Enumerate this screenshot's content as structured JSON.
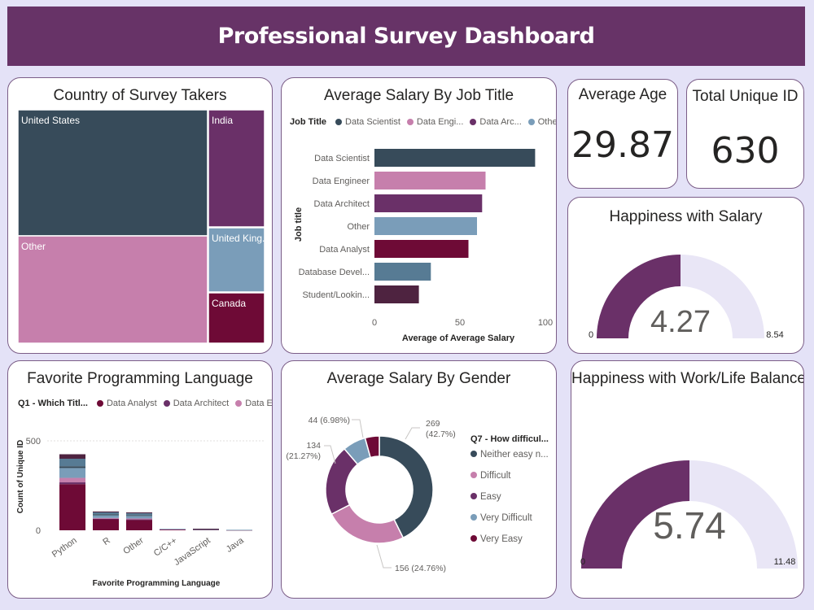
{
  "header": {
    "title": "Professional Survey Dashboard"
  },
  "cards": {
    "country": {
      "title": "Country of Survey Takers"
    },
    "salary_job": {
      "title": "Average Salary By Job Title"
    },
    "avg_age": {
      "title": "Average Age",
      "value": "29.87"
    },
    "total_id": {
      "title": "Total Unique ID",
      "value": "630"
    },
    "happy_salary": {
      "title": "Happiness with Salary",
      "value": "4.27",
      "min": "0",
      "max": "8.54",
      "fraction": 0.5
    },
    "prog_lang": {
      "title": "Favorite Programming Language"
    },
    "salary_gender": {
      "title": "Average Salary By Gender"
    },
    "happy_wlb": {
      "title": "Happiness with Work/Life Balance",
      "value": "5.74",
      "min": "0",
      "max": "11.48",
      "fraction": 0.5
    }
  },
  "colors": {
    "header": "#673367",
    "slate": "#374b5a",
    "pink": "#c67fac",
    "purple": "#6a3068",
    "steel": "#7a9db9",
    "maroon": "#6e0a36",
    "steel2": "#577b94",
    "plum": "#4e2340",
    "gauge_track": "#e9e6f6"
  },
  "chart_data": [
    {
      "id": "country",
      "type": "treemap",
      "title": "Country of Survey Takers",
      "items": [
        {
          "name": "United States",
          "color": "#374b5a"
        },
        {
          "name": "Other",
          "color": "#c67fac"
        },
        {
          "name": "India",
          "color": "#6a3068"
        },
        {
          "name": "United King...",
          "color": "#7a9db9"
        },
        {
          "name": "Canada",
          "color": "#6e0a36"
        }
      ]
    },
    {
      "id": "salary_job",
      "type": "bar",
      "orientation": "horizontal",
      "title": "Average Salary By Job Title",
      "legend_title": "Job Title",
      "legend": [
        {
          "name": "Data Scientist",
          "color": "#374b5a"
        },
        {
          "name": "Data Engi...",
          "color": "#c67fac"
        },
        {
          "name": "Data Arc...",
          "color": "#6a3068"
        },
        {
          "name": "Other",
          "color": "#7a9db9"
        }
      ],
      "categories": [
        "Data Scientist",
        "Data Engineer",
        "Data Architect",
        "Other",
        "Data Analyst",
        "Database Devel...",
        "Student/Lookin..."
      ],
      "values": [
        94,
        65,
        63,
        60,
        55,
        33,
        26
      ],
      "colors": [
        "#374b5a",
        "#c67fac",
        "#6a3068",
        "#7a9db9",
        "#6e0a36",
        "#577b94",
        "#4e2340"
      ],
      "xlabel": "Average of Average Salary",
      "ylabel": "Job title",
      "xlim": [
        0,
        100
      ],
      "xticks": [
        "0",
        "50",
        "100"
      ]
    },
    {
      "id": "prog_lang",
      "type": "bar",
      "stacked": true,
      "title": "Favorite Programming Language",
      "legend_title": "Q1 - Which Titl...",
      "legend": [
        {
          "name": "Data Analyst",
          "color": "#6e0a36"
        },
        {
          "name": "Data Architect",
          "color": "#6a3068"
        },
        {
          "name": "Data Engine...",
          "color": "#c67fac"
        }
      ],
      "categories": [
        "Python",
        "R",
        "Other",
        "C/C++",
        "JavaScript",
        "Java"
      ],
      "series": [
        {
          "name": "Data Analyst",
          "color": "#6e0a36",
          "values": [
            258,
            62,
            58,
            6,
            4,
            2
          ]
        },
        {
          "name": "Data Architect",
          "color": "#6a3068",
          "values": [
            10,
            3,
            3,
            0,
            0,
            0
          ]
        },
        {
          "name": "Data Engine...",
          "color": "#c67fac",
          "values": [
            25,
            4,
            5,
            1,
            1,
            0
          ]
        },
        {
          "color": "#7a9db9",
          "values": [
            55,
            15,
            14,
            1,
            1,
            1
          ]
        },
        {
          "color": "#374b5a",
          "values": [
            10,
            6,
            5,
            0,
            1,
            0
          ]
        },
        {
          "color": "#577b94",
          "values": [
            42,
            10,
            10,
            0,
            1,
            0
          ]
        },
        {
          "color": "#4e2340",
          "values": [
            25,
            5,
            5,
            0,
            1,
            0
          ]
        }
      ],
      "xlabel": "Favorite Programming Language",
      "ylabel": "Count of Unique ID",
      "ylim": [
        0,
        500
      ],
      "yticks": [
        "0",
        "500"
      ]
    },
    {
      "id": "salary_gender",
      "type": "pie",
      "donut": true,
      "title": "Average Salary By Gender",
      "legend_title": "Q7 - How difficul...",
      "slices": [
        {
          "name": "Neither easy n...",
          "value": 269,
          "label": "269\n(42.7%)",
          "color": "#374b5a"
        },
        {
          "name": "Difficult",
          "value": 156,
          "label": "156 (24.76%)",
          "color": "#c67fac"
        },
        {
          "name": "Easy",
          "value": 134,
          "label": "134\n(21.27%)",
          "color": "#6a3068"
        },
        {
          "name": "Very Difficult",
          "value": 44,
          "label": "44 (6.98%)",
          "color": "#7a9db9"
        },
        {
          "name": "Very Easy",
          "value": 27,
          "label": "",
          "color": "#6e0a36"
        }
      ]
    }
  ]
}
